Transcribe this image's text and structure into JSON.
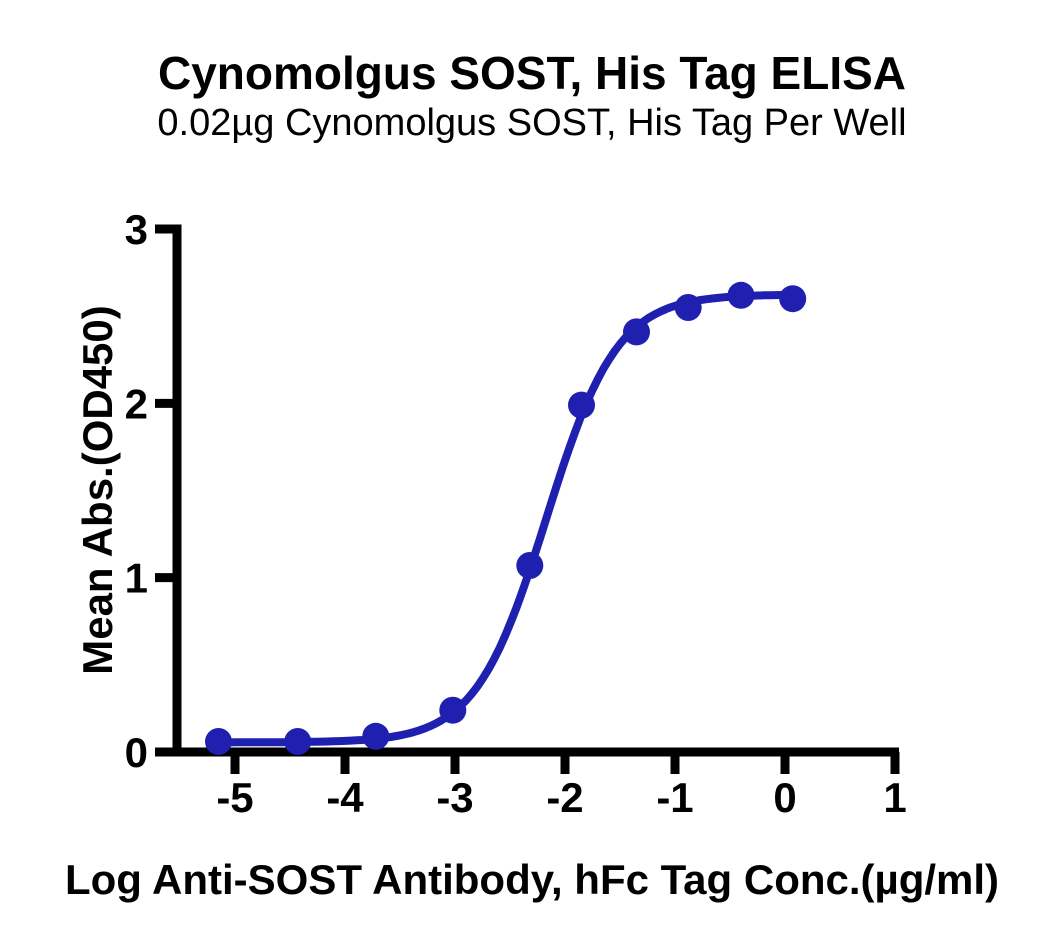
{
  "page": {
    "background_color": "#ffffff",
    "axis_color": "#000000"
  },
  "chart_data": {
    "type": "line",
    "title": "Cynomolgus SOST, His Tag ELISA",
    "subtitle": "0.02µg Cynomolgus SOST, His Tag Per Well",
    "xlabel": "Log Anti-SOST Antibody, hFc Tag Conc.(µg/ml)",
    "ylabel": "Mean Abs.(OD450)",
    "xticks": [
      -5,
      -4,
      -3,
      -2,
      -1,
      0,
      1
    ],
    "yticks": [
      0,
      1,
      2,
      3
    ],
    "xlim": [
      -5.53,
      1.04
    ],
    "ylim": [
      0,
      3
    ],
    "grid": false,
    "legend": false,
    "series": [
      {
        "name": "Anti-SOST Antibody, hFc Tag",
        "color": "#2020b0",
        "marker": "circle",
        "points": [
          [
            -5.15,
            0.06
          ],
          [
            -4.43,
            0.06
          ],
          [
            -3.72,
            0.09
          ],
          [
            -3.02,
            0.24
          ],
          [
            -2.32,
            1.07
          ],
          [
            -1.85,
            1.99
          ],
          [
            -1.35,
            2.41
          ],
          [
            -0.88,
            2.55
          ],
          [
            -0.4,
            2.62
          ],
          [
            0.07,
            2.6
          ]
        ],
        "fit": {
          "model": "four-parameter-logistic",
          "bottom": 0.055,
          "top": 2.625,
          "log_ec50": -2.17,
          "hill": 1.35
        }
      }
    ]
  }
}
